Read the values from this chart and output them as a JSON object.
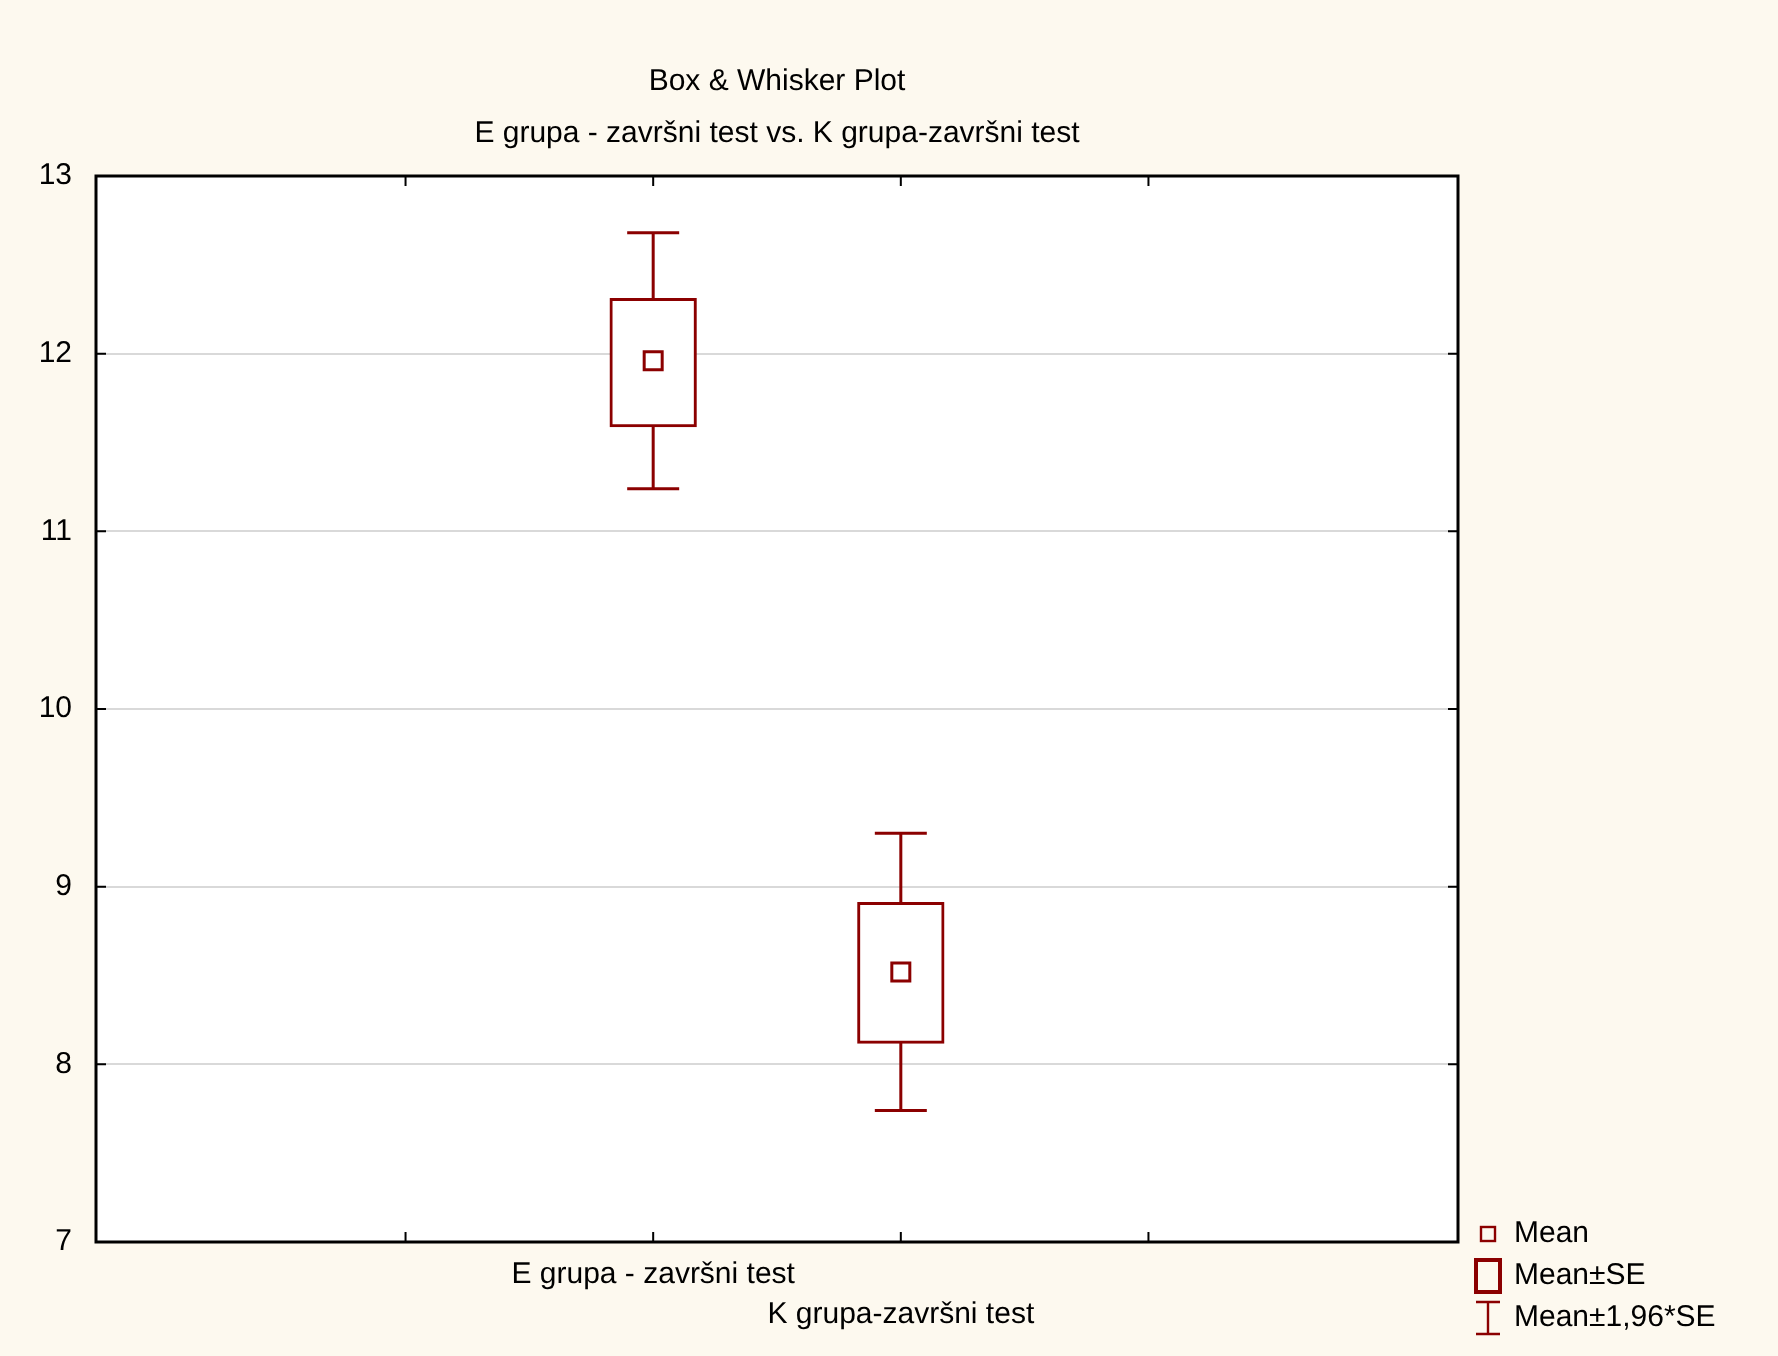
{
  "chart_data": {
    "type": "box",
    "title": "Box & Whisker Plot",
    "subtitle": "E grupa - završni test vs. K grupa-završni test",
    "categories": [
      "E grupa - završni test",
      "K grupa-završni test"
    ],
    "boxes": [
      {
        "low": 11.24,
        "q1": 11.59,
        "median": 11.96,
        "q3": 12.31,
        "high": 12.68
      },
      {
        "low": 7.74,
        "q1": 8.12,
        "median": 8.52,
        "q3": 8.91,
        "high": 9.3
      }
    ],
    "color": "#8b0000",
    "ylim": [
      7,
      13
    ],
    "yticks": [
      7,
      8,
      9,
      10,
      11,
      12,
      13
    ],
    "grid": "y",
    "annotations": [
      "Mean",
      "Mean±SE",
      "Mean±1,96*SE"
    ]
  }
}
